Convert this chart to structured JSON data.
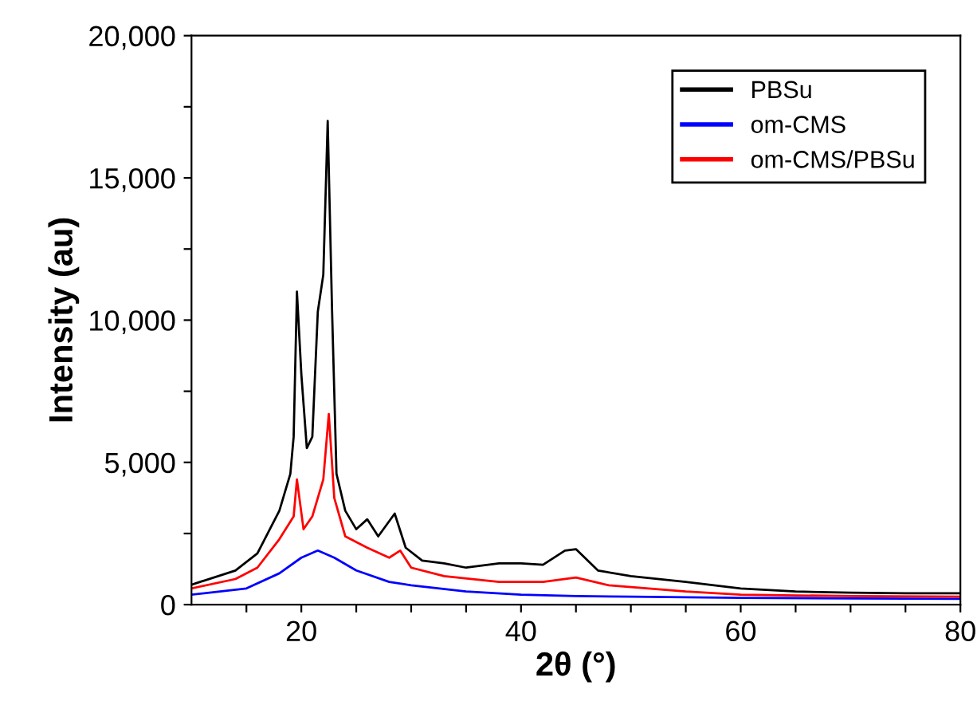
{
  "chart_data": {
    "type": "line",
    "xlabel": "2θ (°)",
    "ylabel": "Intensity (au)",
    "xlim": [
      10,
      80
    ],
    "ylim": [
      0,
      20000
    ],
    "xticks": [
      {
        "value": 15,
        "label": null
      },
      20,
      {
        "value": 25,
        "label": null
      },
      {
        "value": 30,
        "label": null
      },
      {
        "value": 35,
        "label": null
      },
      40,
      {
        "value": 45,
        "label": null
      },
      {
        "value": 50,
        "label": null
      },
      {
        "value": 55,
        "label": null
      },
      60,
      {
        "value": 65,
        "label": null
      },
      {
        "value": 70,
        "label": null
      },
      {
        "value": 75,
        "label": null
      },
      80
    ],
    "yticks": [
      0,
      {
        "value": 2500,
        "label": null
      },
      {
        "value": 5000,
        "label": "5,000"
      },
      {
        "value": 7500,
        "label": null
      },
      {
        "value": 10000,
        "label": "10,000"
      },
      {
        "value": 12500,
        "label": null
      },
      {
        "value": 15000,
        "label": "15,000"
      },
      {
        "value": 17500,
        "label": null
      },
      {
        "value": 20000,
        "label": "20,000"
      }
    ],
    "grid": false,
    "legend": "top right",
    "marker": "none",
    "line_style": "solid",
    "series": [
      {
        "name": "PBSu",
        "color": "#000000",
        "x": [
          10,
          14,
          16,
          18,
          19,
          19.3,
          19.6,
          20.0,
          20.5,
          21,
          21.5,
          22,
          22.4,
          22.8,
          23.2,
          24,
          25,
          26,
          27,
          28.5,
          29.5,
          31,
          33,
          35,
          38,
          40,
          42,
          44,
          45,
          47,
          50,
          55,
          60,
          65,
          70,
          75,
          80
        ],
        "values": [
          700,
          1200,
          1800,
          3300,
          4600,
          5900,
          11000,
          8100,
          5500,
          5900,
          10300,
          11600,
          17000,
          10300,
          4600,
          3300,
          2650,
          3000,
          2400,
          3200,
          2000,
          1550,
          1450,
          1300,
          1450,
          1450,
          1400,
          1900,
          1950,
          1200,
          1000,
          800,
          570,
          460,
          420,
          400,
          400
        ]
      },
      {
        "name": "om-CMS",
        "color": "#0000ff",
        "x": [
          10,
          15,
          18,
          20,
          21.5,
          23,
          25,
          28,
          30,
          35,
          40,
          45,
          50,
          60,
          70,
          80
        ],
        "values": [
          350,
          570,
          1100,
          1650,
          1900,
          1650,
          1200,
          800,
          680,
          460,
          350,
          300,
          280,
          240,
          220,
          200
        ]
      },
      {
        "name": "om-CMS/PBSu",
        "color": "#ff0000",
        "x": [
          10,
          14,
          16,
          18,
          19.3,
          19.6,
          20.2,
          21,
          22,
          22.5,
          23,
          24,
          26,
          28,
          29,
          30,
          33,
          38,
          42,
          45,
          48,
          55,
          60,
          70,
          80
        ],
        "values": [
          570,
          900,
          1300,
          2300,
          3100,
          4400,
          2650,
          3100,
          4400,
          6700,
          3750,
          2400,
          2000,
          1650,
          1900,
          1300,
          1000,
          800,
          800,
          950,
          680,
          460,
          350,
          300,
          280
        ]
      }
    ]
  }
}
